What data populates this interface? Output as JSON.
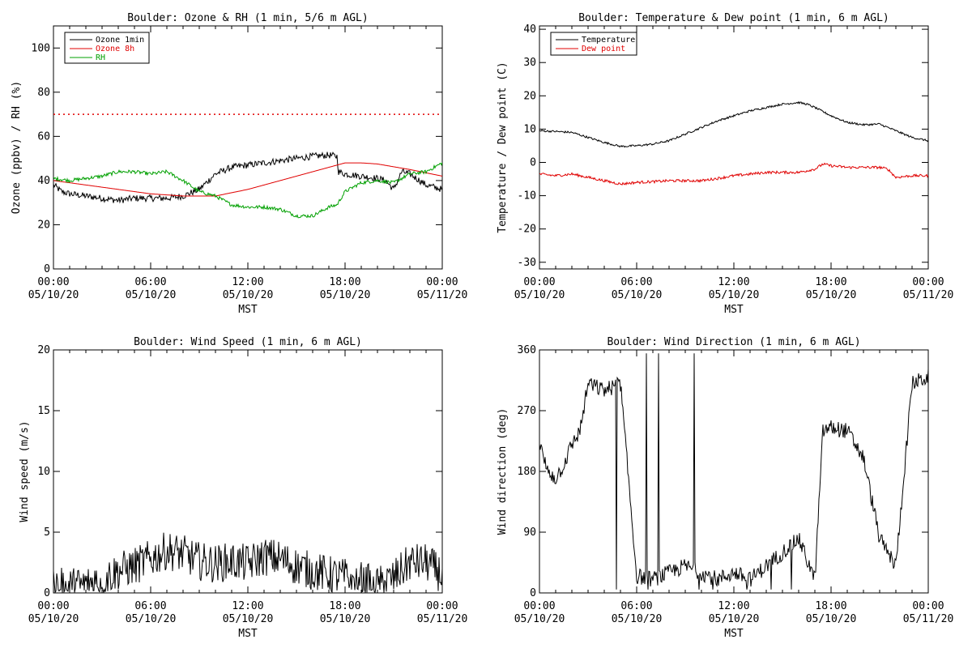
{
  "chart_data": [
    {
      "type": "line",
      "title": "Boulder: Ozone & RH (1 min, 5/6 m AGL)",
      "xlabel": "MST",
      "ylabel": "Ozone (ppbv) / RH (%)",
      "ylim": [
        0,
        110
      ],
      "yticks": [
        0,
        20,
        40,
        60,
        80,
        100
      ],
      "xlim": [
        0,
        24
      ],
      "xticks": [
        0,
        6,
        12,
        18,
        24
      ],
      "xtick_labels": [
        [
          "00:00",
          "05/10/20"
        ],
        [
          "06:00",
          "05/10/20"
        ],
        [
          "12:00",
          "05/10/20"
        ],
        [
          "18:00",
          "05/10/20"
        ],
        [
          "00:00",
          "05/11/20"
        ]
      ],
      "legend_position": "top-left",
      "colors": {
        "ozone_1min": "#000000",
        "ozone_8h": "#e00000",
        "rh": "#00a000"
      },
      "reference_line": {
        "y": 70,
        "color": "#e00000",
        "style": "dotted"
      },
      "series": [
        {
          "name": "Ozone 1min",
          "color": "#000000",
          "noise": 1.5,
          "x": [
            0,
            0.5,
            1,
            2,
            3,
            4,
            5,
            6,
            7,
            8,
            9,
            10,
            11,
            12,
            13,
            14,
            15,
            16,
            17,
            17.5,
            17.6,
            18,
            19,
            20,
            20.5,
            21,
            21.5,
            22,
            23,
            24
          ],
          "y": [
            38,
            35,
            34,
            33,
            32,
            31,
            32,
            32,
            32,
            33,
            36,
            43,
            46,
            47,
            48,
            49,
            50,
            51,
            51.5,
            51,
            44,
            43,
            42,
            41,
            40,
            36,
            44,
            43,
            38,
            36
          ]
        },
        {
          "name": "Ozone 8h",
          "color": "#e00000",
          "noise": 0,
          "x": [
            0,
            2,
            4,
            6,
            8,
            10,
            12,
            14,
            16,
            18,
            19,
            20,
            22,
            24
          ],
          "y": [
            40,
            38,
            36,
            34,
            33,
            33,
            36,
            40,
            44,
            48,
            48,
            47.5,
            45,
            42
          ]
        },
        {
          "name": "RH",
          "color": "#00a000",
          "noise": 0.8,
          "x": [
            0,
            1,
            2,
            3,
            4,
            5,
            6,
            7,
            8,
            9,
            10,
            11,
            12,
            13,
            14,
            15,
            16,
            17,
            17.5,
            18,
            19,
            20,
            21,
            22,
            23,
            24
          ],
          "y": [
            41,
            40,
            41,
            42,
            44,
            44,
            43,
            44,
            40,
            35,
            33,
            29,
            28,
            28,
            27,
            24,
            24,
            28,
            29,
            35,
            39,
            40,
            39,
            43,
            44,
            48
          ]
        }
      ]
    },
    {
      "type": "line",
      "title": "Boulder: Temperature & Dew point (1 min, 6 m AGL)",
      "xlabel": "MST",
      "ylabel": "Temperature / Dew point (C)",
      "ylim": [
        -32,
        41
      ],
      "yticks": [
        -30,
        -20,
        -10,
        0,
        10,
        20,
        30,
        40
      ],
      "xlim": [
        0,
        24
      ],
      "xticks": [
        0,
        6,
        12,
        18,
        24
      ],
      "xtick_labels": [
        [
          "00:00",
          "05/10/20"
        ],
        [
          "06:00",
          "05/10/20"
        ],
        [
          "12:00",
          "05/10/20"
        ],
        [
          "18:00",
          "05/10/20"
        ],
        [
          "00:00",
          "05/11/20"
        ]
      ],
      "legend_position": "top-left",
      "colors": {
        "temperature": "#000000",
        "dew_point": "#e00000"
      },
      "series": [
        {
          "name": "Temperature",
          "color": "#000000",
          "noise": 0.3,
          "x": [
            0,
            1,
            2,
            3,
            4,
            5,
            6,
            7,
            8,
            9,
            10,
            11,
            12,
            13,
            14,
            15,
            16,
            16.5,
            17,
            18,
            19,
            20,
            21,
            22,
            23,
            24
          ],
          "y": [
            9.5,
            9.3,
            9,
            7.5,
            6,
            4.8,
            5,
            5.5,
            6.5,
            8.5,
            10.5,
            12.5,
            14,
            15.5,
            16.5,
            17.5,
            18,
            17.5,
            16.5,
            14,
            12,
            11.3,
            11.5,
            9.5,
            7.5,
            6.5
          ]
        },
        {
          "name": "Dew point",
          "color": "#e00000",
          "noise": 0.4,
          "x": [
            0,
            1,
            2,
            3,
            4,
            5,
            6,
            7,
            8,
            9,
            10,
            11,
            12,
            13,
            14,
            15,
            16,
            17,
            17.5,
            18,
            19,
            20,
            21,
            21.5,
            22,
            23,
            24
          ],
          "y": [
            -3.5,
            -4,
            -3.5,
            -4.5,
            -5.5,
            -6.5,
            -6,
            -5.8,
            -5.5,
            -5.5,
            -5.5,
            -4.8,
            -4,
            -3.5,
            -3,
            -3,
            -3,
            -2,
            -0.5,
            -1,
            -1.5,
            -1.5,
            -1.5,
            -2,
            -4.5,
            -4,
            -4
          ]
        }
      ]
    },
    {
      "type": "line",
      "title": "Boulder: Wind Speed (1 min, 6 m AGL)",
      "xlabel": "MST",
      "ylabel": "Wind speed (m/s)",
      "ylim": [
        0,
        20
      ],
      "yticks": [
        0,
        5,
        10,
        15,
        20
      ],
      "xlim": [
        0,
        24
      ],
      "xticks": [
        0,
        6,
        12,
        18,
        24
      ],
      "xtick_labels": [
        [
          "00:00",
          "05/10/20"
        ],
        [
          "06:00",
          "05/10/20"
        ],
        [
          "12:00",
          "05/10/20"
        ],
        [
          "18:00",
          "05/10/20"
        ],
        [
          "00:00",
          "05/11/20"
        ]
      ],
      "series": [
        {
          "name": "",
          "color": "#000000",
          "noise": 1.6,
          "floor": 0,
          "x": [
            0,
            1,
            2,
            3,
            4,
            5,
            6,
            7,
            8,
            9,
            10,
            11,
            12,
            13,
            14,
            15,
            16,
            17,
            18,
            19,
            20,
            21,
            22,
            23,
            24
          ],
          "y": [
            0.5,
            0.5,
            0.7,
            1.2,
            1.8,
            2.2,
            2.8,
            3.5,
            3.2,
            2.6,
            2.4,
            2.6,
            2.4,
            3.0,
            2.8,
            2.2,
            1.8,
            1.5,
            1.3,
            1.0,
            0.6,
            1.2,
            2.5,
            2.5,
            1.5
          ]
        }
      ]
    },
    {
      "type": "line",
      "title": "Boulder: Wind Direction (1 min, 6 m AGL)",
      "xlabel": "MST",
      "ylabel": "Wind direction (deg)",
      "ylim": [
        0,
        360
      ],
      "yticks": [
        0,
        90,
        180,
        270,
        360
      ],
      "xlim": [
        0,
        24
      ],
      "xticks": [
        0,
        6,
        12,
        18,
        24
      ],
      "xtick_labels": [
        [
          "00:00",
          "05/10/20"
        ],
        [
          "06:00",
          "05/10/20"
        ],
        [
          "12:00",
          "05/10/20"
        ],
        [
          "18:00",
          "05/10/20"
        ],
        [
          "00:00",
          "05/11/20"
        ]
      ],
      "series": [
        {
          "name": "",
          "color": "#000000",
          "noise": 12,
          "wrap": true,
          "x": [
            0,
            0.5,
            1,
            1.5,
            2,
            2.5,
            3,
            4,
            5,
            6,
            7,
            8,
            9,
            10,
            11,
            12,
            13,
            14,
            15,
            16,
            17,
            17.5,
            18,
            19,
            20,
            21,
            22,
            23,
            24
          ],
          "y": [
            220,
            180,
            170,
            190,
            220,
            240,
            310,
            300,
            310,
            25,
            20,
            30,
            40,
            30,
            20,
            30,
            20,
            40,
            60,
            80,
            20,
            240,
            245,
            240,
            200,
            80,
            40,
            310,
            320
          ]
        }
      ]
    }
  ]
}
